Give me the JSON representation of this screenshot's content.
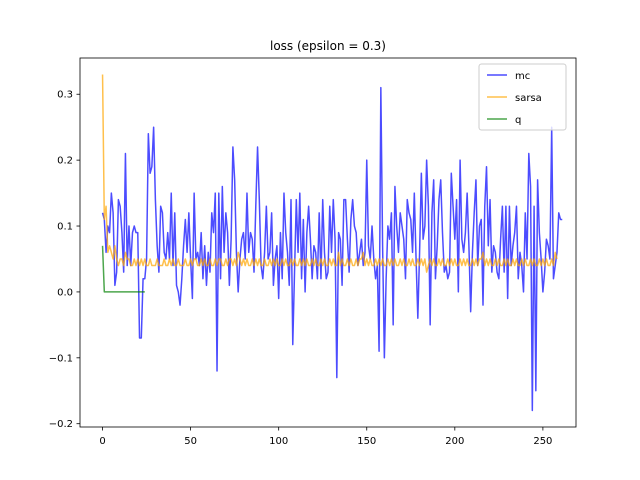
{
  "chart_data": {
    "type": "line",
    "title": "loss (epsilon = 0.3)",
    "xlabel": "",
    "ylabel": "",
    "xlim": [
      -12.8,
      268.8
    ],
    "ylim": [
      -0.205,
      0.355
    ],
    "xticks": [
      0,
      50,
      100,
      150,
      200,
      250
    ],
    "yticks": [
      -0.2,
      -0.1,
      0.0,
      0.1,
      0.2,
      0.3
    ],
    "ytick_labels": [
      "−0.2",
      "−0.1",
      "0.0",
      "0.1",
      "0.2",
      "0.3"
    ],
    "grid": false,
    "legend_position": "top-right",
    "series": [
      {
        "name": "mc",
        "color": "#0000ff",
        "alpha": 0.7,
        "y": [
          0.12,
          0.11,
          0.06,
          0.1,
          0.09,
          0.15,
          0.12,
          0.01,
          0.03,
          0.14,
          0.13,
          0.09,
          0.03,
          0.21,
          0.04,
          0.1,
          0.04,
          0.09,
          0.1,
          0.09,
          0.09,
          -0.07,
          -0.07,
          0.02,
          0.02,
          0.05,
          0.24,
          0.18,
          0.19,
          0.25,
          0.14,
          0.07,
          0.03,
          0.13,
          0.12,
          0.06,
          0.05,
          0.09,
          0.05,
          0.15,
          0.04,
          0.12,
          0.01,
          0.0,
          -0.02,
          0.02,
          0.07,
          0.11,
          0.06,
          0.12,
          0.05,
          -0.01,
          0.15,
          0.05,
          0.06,
          0.04,
          0.09,
          0.02,
          0.07,
          0.01,
          0.06,
          0.03,
          0.12,
          0.09,
          0.15,
          -0.12,
          0.15,
          0.02,
          0.16,
          0.06,
          0.12,
          0.09,
          0.01,
          0.08,
          0.22,
          0.17,
          0.06,
          0.0,
          0.05,
          0.08,
          0.09,
          0.05,
          0.15,
          0.06,
          0.09,
          0.08,
          0.03,
          0.13,
          0.22,
          0.14,
          0.04,
          0.02,
          0.06,
          0.13,
          0.05,
          0.06,
          0.12,
          0.01,
          0.05,
          0.07,
          -0.01,
          0.09,
          0.02,
          0.15,
          0.09,
          0.06,
          0.01,
          0.14,
          -0.08,
          0.03,
          0.14,
          0.06,
          0.15,
          0.02,
          0.11,
          0.0,
          0.09,
          0.13,
          0.08,
          0.02,
          0.07,
          0.06,
          0.02,
          0.12,
          0.02,
          0.14,
          0.06,
          0.02,
          0.03,
          0.13,
          0.06,
          0.14,
          0.08,
          -0.13,
          0.09,
          0.08,
          0.01,
          0.14,
          0.14,
          0.08,
          0.03,
          0.11,
          0.14,
          0.1,
          0.09,
          0.04,
          0.06,
          0.08,
          0.04,
          0.06,
          0.2,
          0.07,
          0.05,
          0.1,
          0.05,
          0.02,
          0.04,
          -0.09,
          0.31,
          0.07,
          -0.1,
          0.02,
          0.1,
          0.08,
          0.12,
          -0.05,
          0.16,
          0.1,
          0.06,
          0.12,
          0.1,
          0.08,
          0.02,
          0.14,
          0.12,
          0.11,
          0.06,
          0.15,
          0.05,
          -0.04,
          0.06,
          0.18,
          0.08,
          0.1,
          0.2,
          0.13,
          -0.05,
          0.12,
          0.17,
          0.02,
          0.07,
          0.14,
          0.17,
          0.09,
          0.03,
          0.04,
          0.02,
          0.03,
          0.18,
          0.13,
          0.08,
          0.14,
          0.0,
          0.2,
          0.08,
          0.06,
          0.09,
          0.15,
          0.07,
          -0.03,
          0.06,
          0.12,
          0.17,
          0.04,
          0.1,
          0.11,
          -0.02,
          0.13,
          0.19,
          0.07,
          0.14,
          0.03,
          0.07,
          0.06,
          0.03,
          0.02,
          0.08,
          0.13,
          0.03,
          0.13,
          -0.01,
          0.13,
          0.04,
          0.07,
          0.09,
          0.13,
          0.02,
          0.06,
          0.04,
          0.0,
          0.12,
          0.05,
          0.21,
          0.16,
          -0.18,
          0.13,
          -0.15,
          0.17,
          0.09,
          0.05,
          0.0,
          0.03,
          0.08,
          0.07,
          0.05,
          0.25,
          0.02,
          0.04,
          0.06,
          0.12,
          0.11,
          0.11
        ]
      },
      {
        "name": "sarsa",
        "color": "#ffa500",
        "alpha": 0.7,
        "y": [
          0.33,
          0.11,
          0.13,
          0.06,
          0.07,
          0.06,
          0.05,
          0.07,
          0.05,
          0.04,
          0.05,
          0.05,
          0.04,
          0.06,
          0.05,
          0.05,
          0.04,
          0.04,
          0.05,
          0.04,
          0.05,
          0.04,
          0.05,
          0.04,
          0.05,
          0.04,
          0.04,
          0.05,
          0.04,
          0.04,
          0.04,
          0.05,
          0.04,
          0.04,
          0.04,
          0.05,
          0.04,
          0.04,
          0.05,
          0.04,
          0.05,
          0.04,
          0.04,
          0.05,
          0.04,
          0.04,
          0.04,
          0.05,
          0.04,
          0.04,
          0.05,
          0.04,
          0.05,
          0.05,
          0.04,
          0.04,
          0.05,
          0.04,
          0.05,
          0.04,
          0.04,
          0.05,
          0.04,
          0.04,
          0.05,
          0.04,
          0.05,
          0.05,
          0.04,
          0.04,
          0.05,
          0.04,
          0.05,
          0.05,
          0.04,
          0.05,
          0.04,
          0.06,
          0.05,
          0.04,
          0.05,
          0.04,
          0.05,
          0.04,
          0.04,
          0.05,
          0.04,
          0.05,
          0.04,
          0.05,
          0.04,
          0.04,
          0.05,
          0.04,
          0.04,
          0.05,
          0.04,
          0.05,
          0.04,
          0.05,
          0.04,
          0.04,
          0.05,
          0.04,
          0.05,
          0.04,
          0.04,
          0.05,
          0.04,
          0.05,
          0.04,
          0.04,
          0.05,
          0.04,
          0.05,
          0.04,
          0.05,
          0.04,
          0.04,
          0.05,
          0.04,
          0.05,
          0.04,
          0.04,
          0.05,
          0.04,
          0.05,
          0.04,
          0.04,
          0.05,
          0.04,
          0.05,
          0.04,
          0.04,
          0.06,
          0.04,
          0.05,
          0.04,
          0.04,
          0.05,
          0.04,
          0.05,
          0.04,
          0.04,
          0.05,
          0.04,
          0.05,
          0.05,
          0.06,
          0.04,
          0.05,
          0.04,
          0.05,
          0.04,
          0.04,
          0.05,
          0.04,
          0.05,
          0.04,
          0.05,
          0.04,
          0.04,
          0.05,
          0.04,
          0.05,
          0.04,
          0.05,
          0.04,
          0.04,
          0.05,
          0.04,
          0.05,
          0.04,
          0.04,
          0.05,
          0.04,
          0.05,
          0.04,
          0.04,
          0.05,
          0.04,
          0.05,
          0.04,
          0.05,
          0.03,
          0.04,
          0.05,
          0.04,
          0.05,
          0.04,
          0.04,
          0.05,
          0.04,
          0.05,
          0.04,
          0.04,
          0.05,
          0.04,
          0.05,
          0.04,
          0.05,
          0.04,
          0.04,
          0.05,
          0.04,
          0.05,
          0.04,
          0.05,
          0.04,
          0.04,
          0.05,
          0.04,
          0.05,
          0.04,
          0.05,
          0.05,
          0.06,
          0.04,
          0.05,
          0.04,
          0.05,
          0.04,
          0.04,
          0.05,
          0.04,
          0.05,
          0.04,
          0.04,
          0.05,
          0.04,
          0.05,
          0.04,
          0.04,
          0.05,
          0.04,
          0.05,
          0.04,
          0.04,
          0.05,
          0.04,
          0.05,
          0.04,
          0.04,
          0.05,
          0.04,
          0.05,
          0.04,
          0.04,
          0.05,
          0.04,
          0.05,
          0.04,
          0.05,
          0.04,
          0.04,
          0.05,
          0.04,
          0.06,
          0.05
        ]
      },
      {
        "name": "q",
        "color": "#008000",
        "alpha": 0.7,
        "y": [
          0.07,
          0.0,
          0.0,
          0.0,
          0.0,
          0.0,
          0.0,
          0.0,
          0.0,
          0.0,
          0.0,
          0.0,
          0.0,
          0.0,
          0.0,
          0.0,
          0.0,
          0.0,
          0.0,
          0.0,
          0.0,
          0.0,
          0.0,
          0.0,
          0.0
        ]
      }
    ]
  }
}
